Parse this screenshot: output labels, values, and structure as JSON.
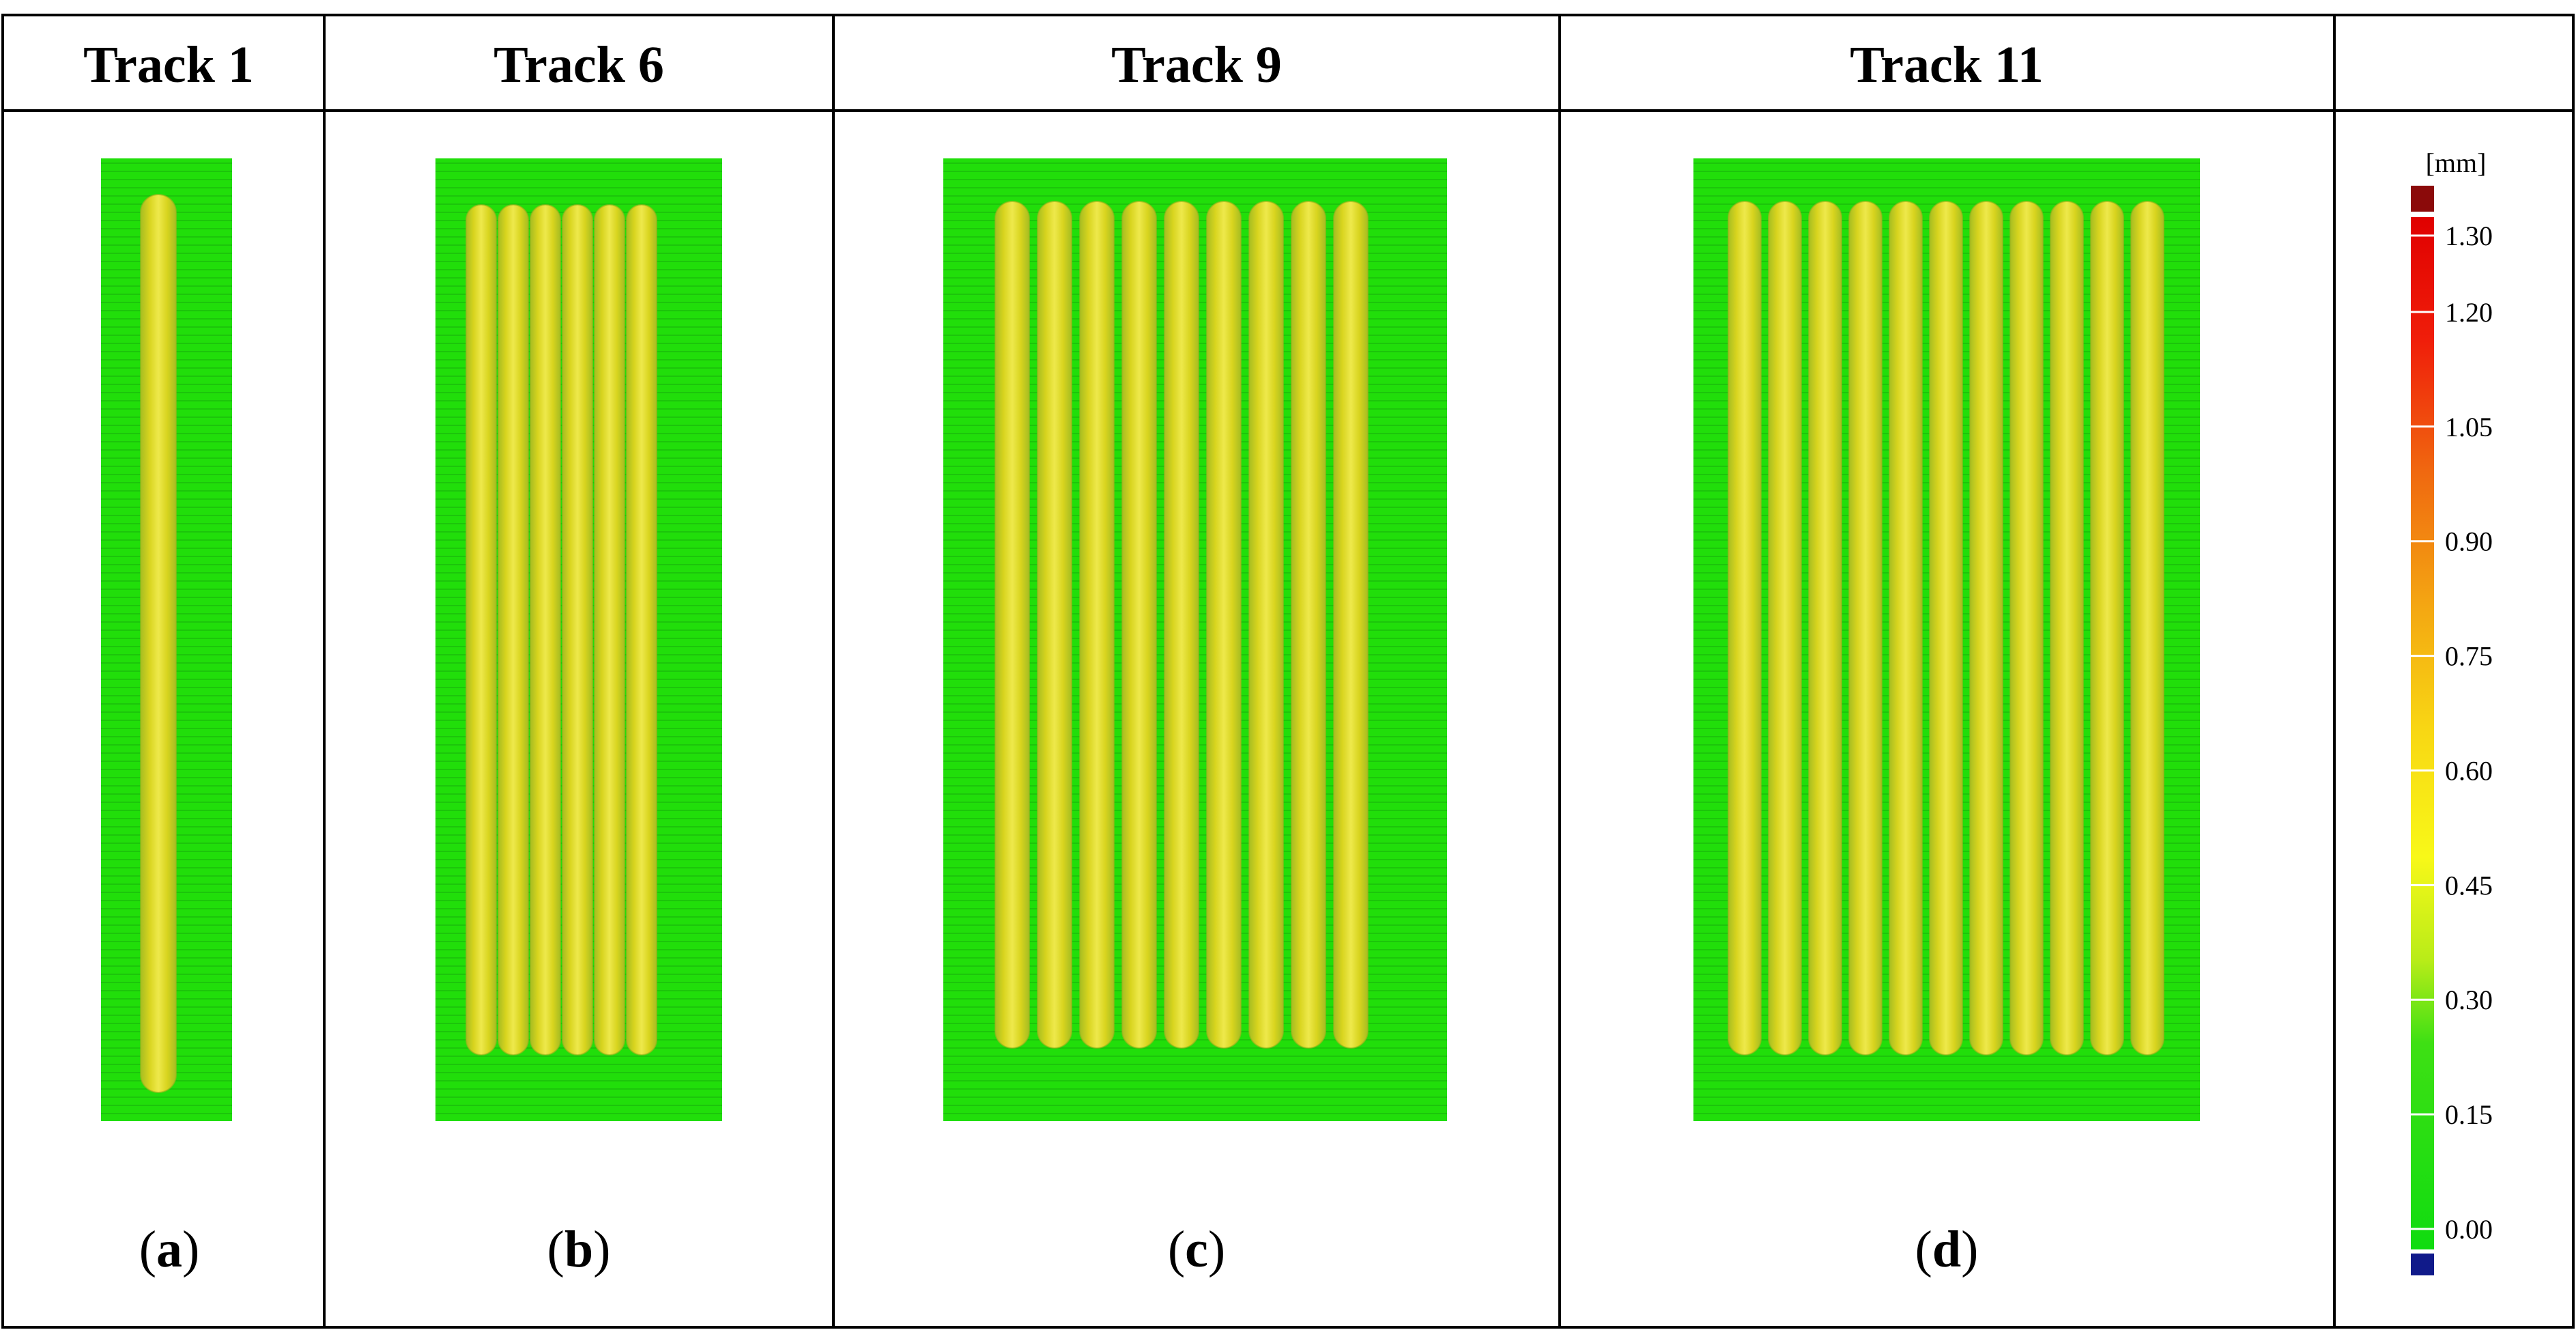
{
  "panels": [
    {
      "id": "a",
      "header": "Track 1",
      "caption_open": "(",
      "caption_letter": "a",
      "caption_close": ")",
      "track_count": 1
    },
    {
      "id": "b",
      "header": "Track 6",
      "caption_open": "(",
      "caption_letter": "b",
      "caption_close": ")",
      "track_count": 6
    },
    {
      "id": "c",
      "header": "Track 9",
      "caption_open": "(",
      "caption_letter": "c",
      "caption_close": ")",
      "track_count": 9
    },
    {
      "id": "d",
      "header": "Track 11",
      "caption_open": "(",
      "caption_letter": "d",
      "caption_close": ")",
      "track_count": 11
    }
  ],
  "color_scale": {
    "unit": "[mm]",
    "ticks": [
      "1.30",
      "1.20",
      "1.05",
      "0.90",
      "0.75",
      "0.60",
      "0.45",
      "0.30",
      "0.15",
      "0.00"
    ],
    "max_color": "#8b0a0a",
    "min_color": "#101a8a"
  },
  "colors": {
    "substrate": "#21de0a",
    "track": "#d9d51c",
    "track_highlight": "#ede84a",
    "track_shadow": "#9fb41d",
    "grid": "#000000"
  }
}
